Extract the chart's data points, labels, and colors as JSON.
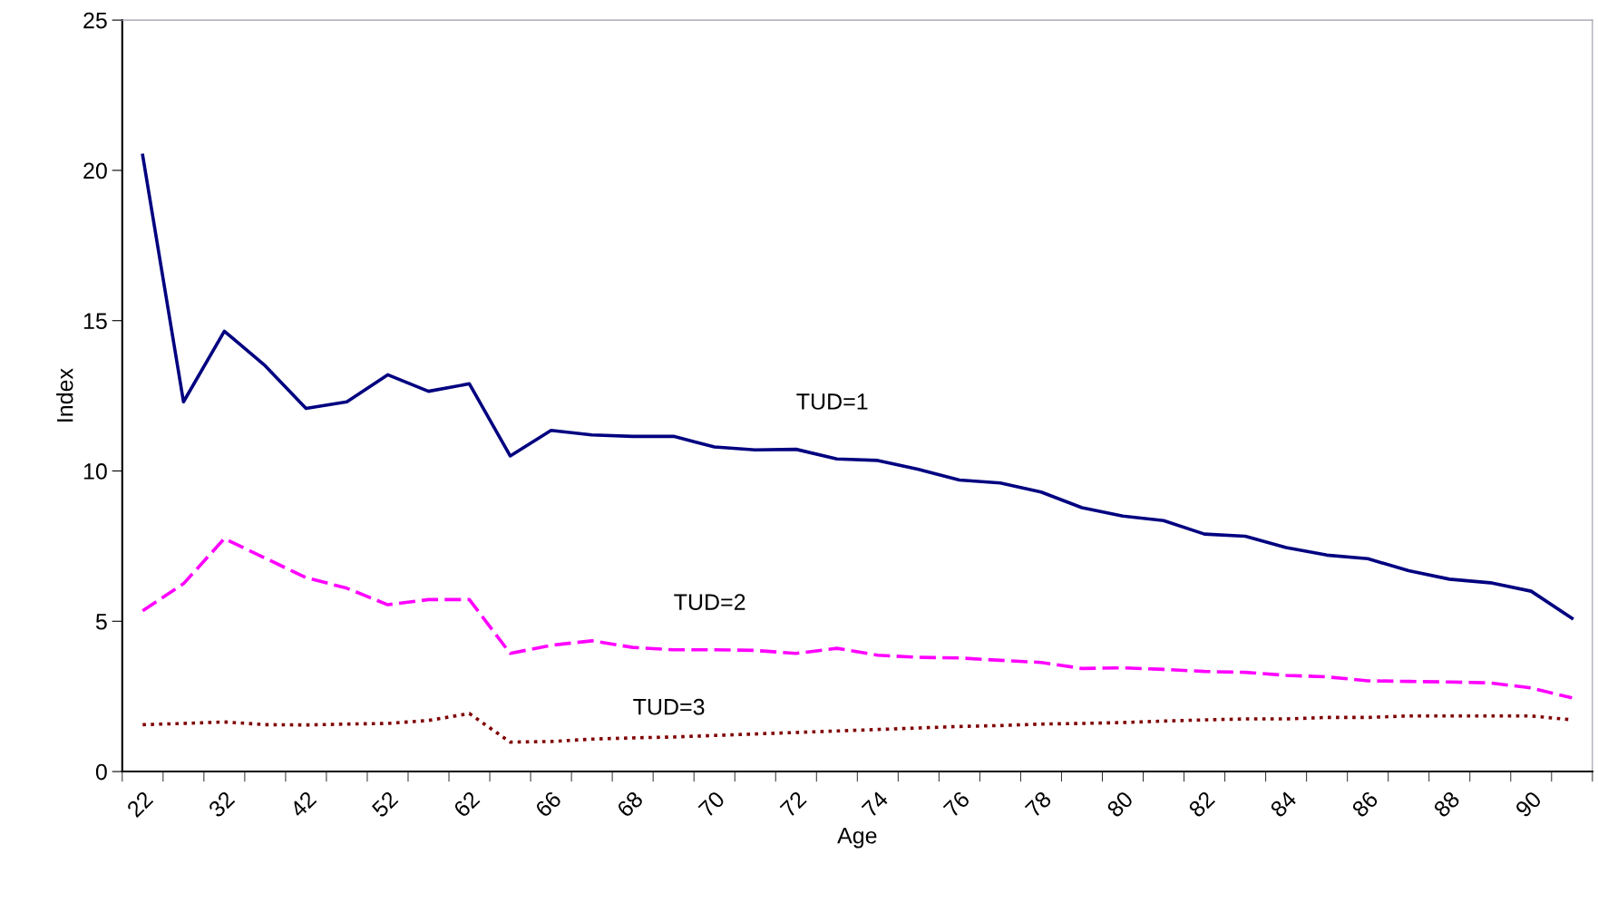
{
  "chart_data": {
    "type": "line",
    "xlabel": "Age",
    "ylabel": "Index",
    "categories": [
      "22",
      null,
      "32",
      null,
      "42",
      null,
      "52",
      null,
      "62",
      null,
      "66",
      null,
      "68",
      null,
      "70",
      null,
      "72",
      null,
      "74",
      null,
      "76",
      null,
      "78",
      null,
      "80",
      null,
      "82",
      null,
      "84",
      null,
      "86",
      null,
      "88",
      null,
      "90",
      null
    ],
    "series": [
      {
        "name": "TUD=1",
        "color": "#000080",
        "line_style": "solid",
        "values": [
          20.5,
          12.3,
          14.65,
          13.5,
          12.08,
          12.3,
          13.2,
          12.65,
          12.9,
          10.5,
          11.35,
          11.2,
          11.15,
          11.15,
          10.8,
          10.7,
          10.72,
          10.4,
          10.35,
          10.05,
          9.7,
          9.6,
          9.3,
          8.78,
          8.5,
          8.35,
          7.9,
          7.83,
          7.45,
          7.2,
          7.08,
          6.68,
          6.4,
          6.28,
          6.0,
          5.1
        ]
      },
      {
        "name": "TUD=2",
        "color": "#ff00ff",
        "line_style": "dashed",
        "values": [
          5.35,
          6.25,
          7.75,
          7.1,
          6.45,
          6.1,
          5.55,
          5.72,
          5.72,
          3.93,
          4.2,
          4.35,
          4.13,
          4.05,
          4.05,
          4.03,
          3.93,
          4.1,
          3.87,
          3.8,
          3.78,
          3.7,
          3.63,
          3.43,
          3.45,
          3.4,
          3.33,
          3.3,
          3.2,
          3.15,
          3.02,
          3.0,
          2.98,
          2.95,
          2.78,
          2.45
        ]
      },
      {
        "name": "TUD=3",
        "color": "#800000",
        "line_style": "dotted",
        "values": [
          1.56,
          1.6,
          1.65,
          1.56,
          1.55,
          1.58,
          1.6,
          1.7,
          1.93,
          0.98,
          1.0,
          1.08,
          1.12,
          1.15,
          1.2,
          1.25,
          1.3,
          1.35,
          1.4,
          1.45,
          1.5,
          1.53,
          1.58,
          1.6,
          1.63,
          1.68,
          1.72,
          1.75,
          1.75,
          1.8,
          1.8,
          1.85,
          1.85,
          1.85,
          1.85,
          1.72
        ]
      }
    ],
    "ylim": [
      0,
      25
    ],
    "yticks": [
      0,
      5,
      10,
      15,
      20,
      25
    ],
    "grid": false,
    "legend": false
  }
}
